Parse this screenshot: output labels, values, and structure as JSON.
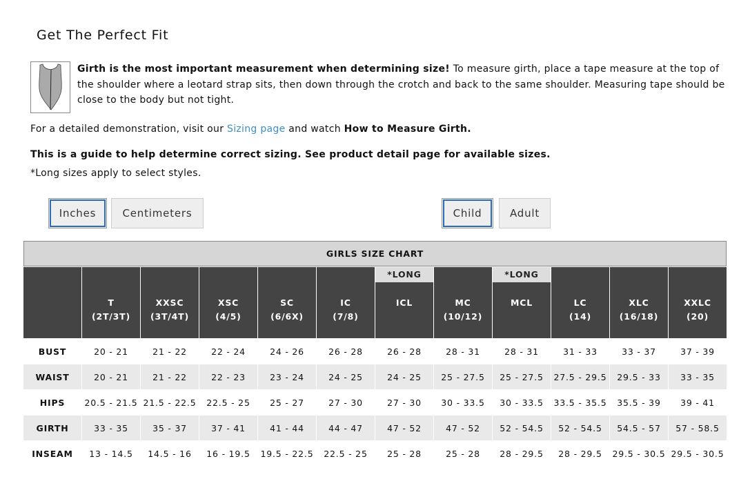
{
  "header": {
    "title": "Get The Perfect Fit"
  },
  "intro": {
    "bold": "Girth is the most important measurement when determining size!",
    "text": "To measure girth, place a tape measure at the top of the shoulder where a leotard strap sits, then down through the crotch and back to the same shoulder. Measuring tape should be close to the body but not tight."
  },
  "demo": {
    "before": "For a detailed demonstration, visit our",
    "link": "Sizing page",
    "middle": "and watch",
    "bold": "How to Measure Girth."
  },
  "notes": {
    "guide": "This is a guide to help determine correct sizing. See product detail page for available sizes.",
    "long": "*Long sizes apply to select styles."
  },
  "buttons": {
    "units": [
      "Inches",
      "Centimeters"
    ],
    "groups": [
      "Child",
      "Adult"
    ]
  },
  "table": {
    "title": "GIRLS SIZE CHART",
    "columns": [
      {
        "size": "T",
        "sub": "(2T/3T)"
      },
      {
        "size": "XXSC",
        "sub": "(3T/4T)"
      },
      {
        "size": "XSC",
        "sub": "(4/5)"
      },
      {
        "size": "SC",
        "sub": "(6/6X)"
      },
      {
        "size": "IC",
        "sub": "(7/8)"
      },
      {
        "size": "ICL",
        "note": "*LONG"
      },
      {
        "size": "MC",
        "sub": "(10/12)"
      },
      {
        "size": "MCL",
        "note": "*LONG"
      },
      {
        "size": "LC",
        "sub": "(14)"
      },
      {
        "size": "XLC",
        "sub": "(16/18)"
      },
      {
        "size": "XXLC",
        "sub": "(20)"
      }
    ],
    "rows": [
      {
        "label": "BUST",
        "values": [
          "20 - 21",
          "21 - 22",
          "22 - 24",
          "24 - 26",
          "26 - 28",
          "26 - 28",
          "28 - 31",
          "28 - 31",
          "31 - 33",
          "33 - 37",
          "37 - 39"
        ]
      },
      {
        "label": "WAIST",
        "values": [
          "20 - 21",
          "21 - 22",
          "22 - 23",
          "23 - 24",
          "24 - 25",
          "24 - 25",
          "25 - 27.5",
          "25 - 27.5",
          "27.5 - 29.5",
          "29.5 - 33",
          "33 - 35"
        ]
      },
      {
        "label": "HIPS",
        "values": [
          "20.5 - 21.5",
          "21.5 - 22.5",
          "22.5 - 25",
          "25 - 27",
          "27 - 30",
          "27 - 30",
          "30 - 33.5",
          "30 - 33.5",
          "33.5 - 35.5",
          "35.5 - 39",
          "39 - 41"
        ]
      },
      {
        "label": "GIRTH",
        "values": [
          "33 - 35",
          "35 - 37",
          "37 - 41",
          "41 - 44",
          "44 - 47",
          "47 - 52",
          "47 - 52",
          "52 - 54.5",
          "52 - 54.5",
          "54.5 - 57",
          "57 - 58.5"
        ]
      },
      {
        "label": "INSEAM",
        "values": [
          "13 - 14.5",
          "14.5 - 16",
          "16 - 19.5",
          "19.5 - 22.5",
          "22.5 - 25",
          "25 - 28",
          "25 - 28",
          "28 - 29.5",
          "28 - 29.5",
          "29.5 - 30.5",
          "29.5 - 30.5"
        ]
      }
    ]
  }
}
